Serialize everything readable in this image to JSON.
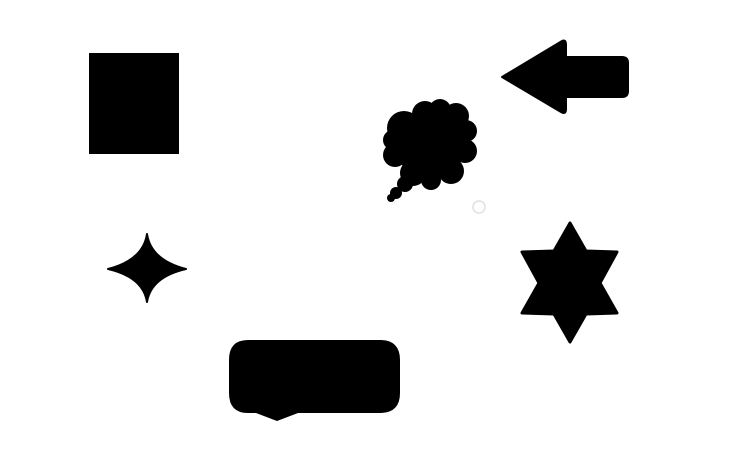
{
  "canvas": {
    "background": "#ffffff",
    "shape_color": "#000000"
  },
  "shapes": [
    {
      "kind": "rectangle",
      "name": "rectangle-shape"
    },
    {
      "kind": "left-arrow",
      "name": "left-arrow-shape"
    },
    {
      "kind": "thought-bubble",
      "name": "thought-bubble-shape"
    },
    {
      "kind": "four-point-star",
      "name": "four-point-star-shape"
    },
    {
      "kind": "six-point-star",
      "name": "six-point-star-shape"
    },
    {
      "kind": "speech-bubble",
      "name": "speech-bubble-shape"
    },
    {
      "kind": "small-circle-outline",
      "name": "small-circle-outline-shape"
    }
  ]
}
